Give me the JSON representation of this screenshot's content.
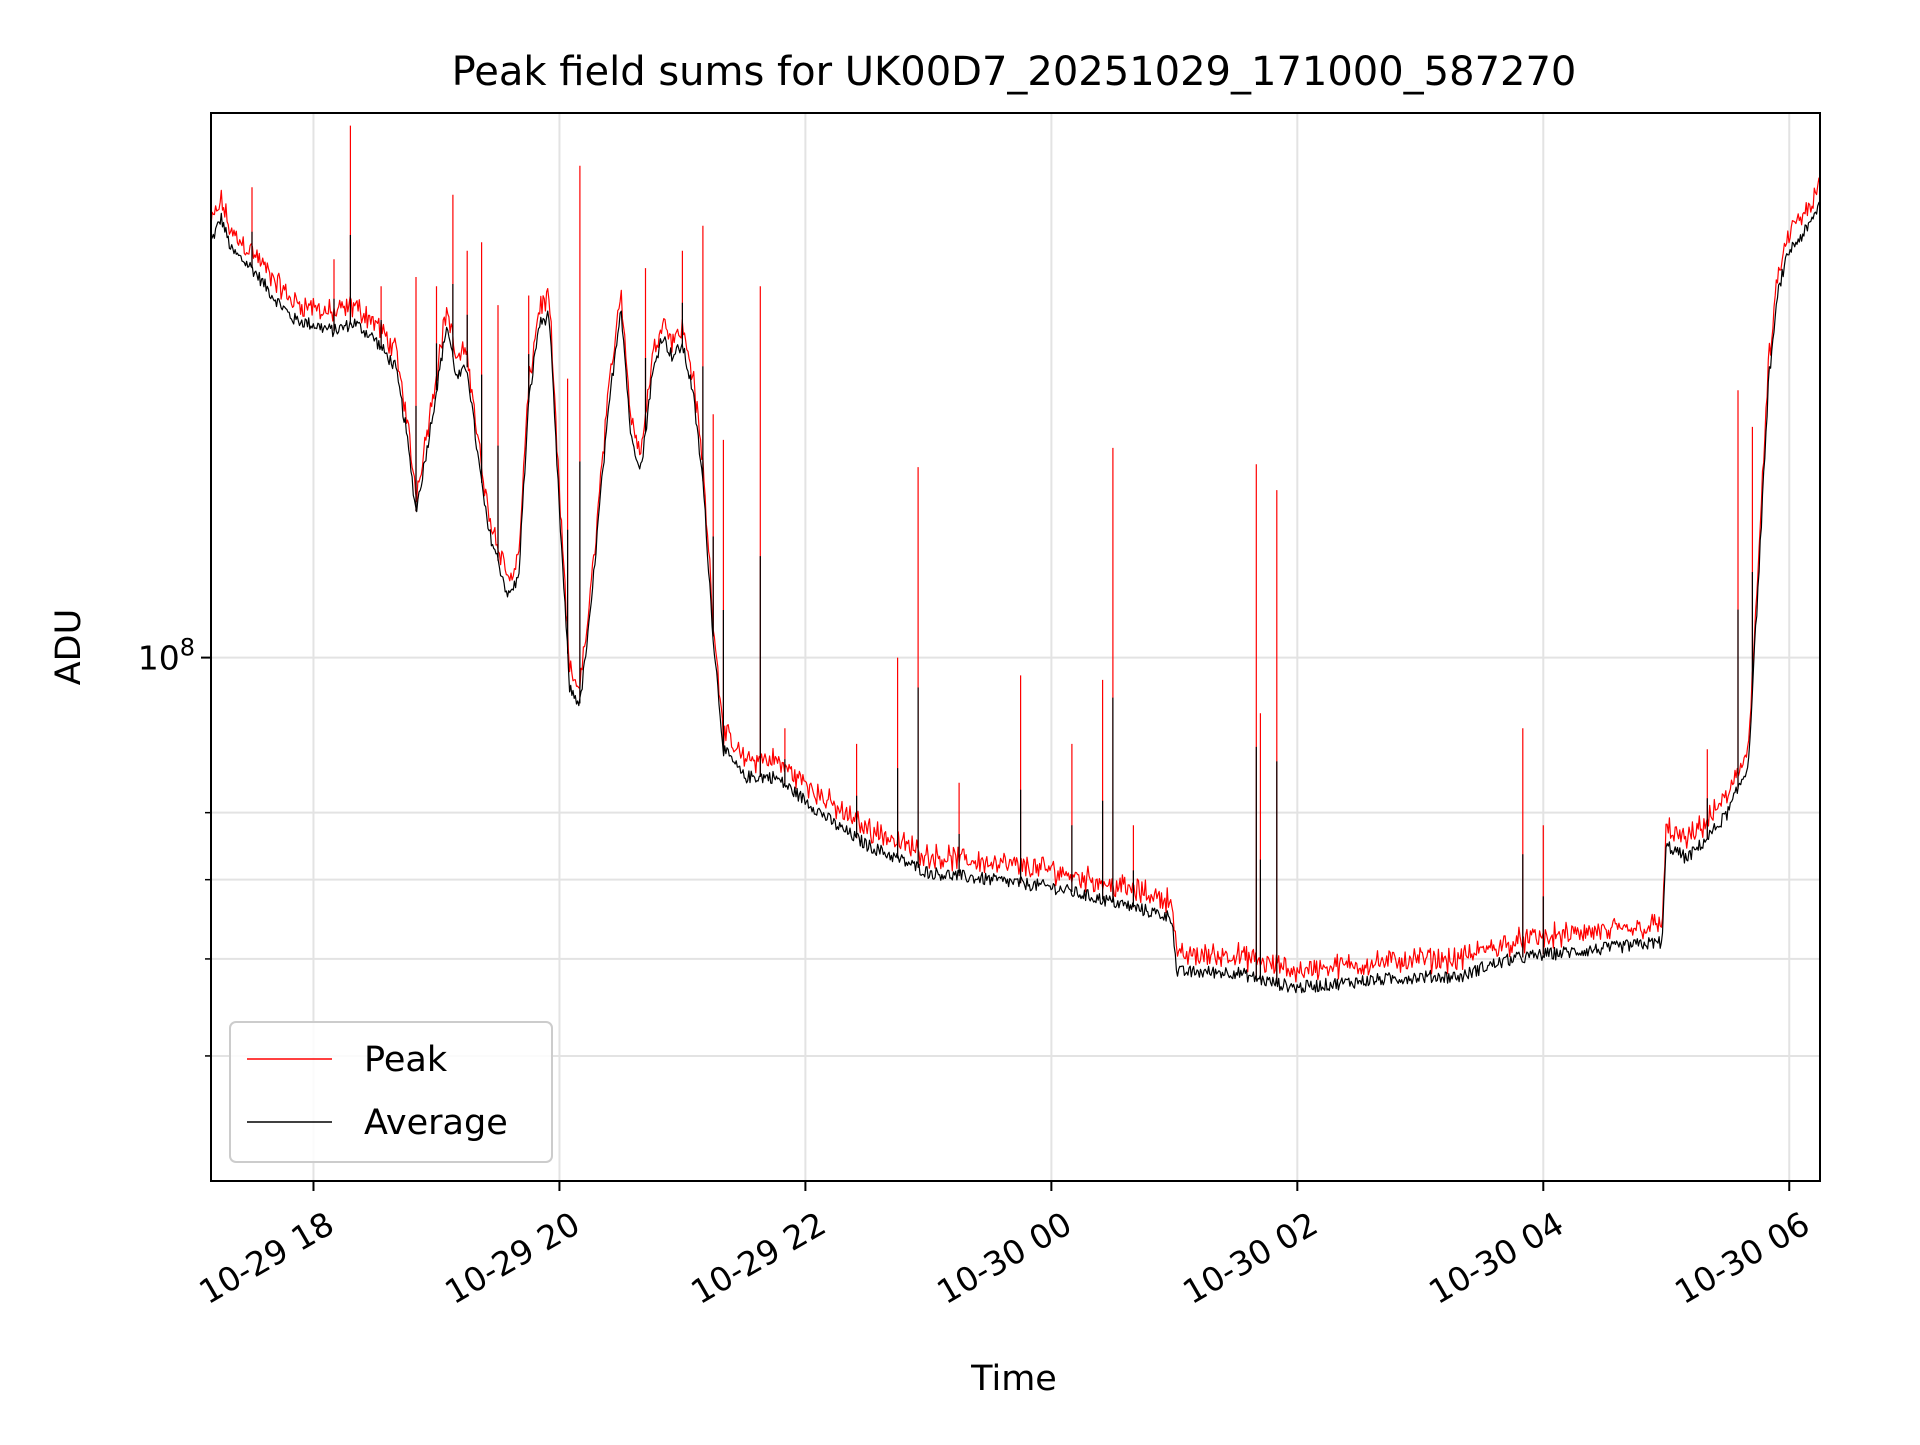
{
  "chart_data": {
    "type": "line",
    "title": "Peak field sums for UK00D7_20251029_171000_587270",
    "xlabel": "Time",
    "ylabel": "ADU",
    "y_scale": "log",
    "ylim": [
      30000000,
      350000000
    ],
    "xlim": [
      "2025-10-29T17:10",
      "2025-10-30T06:15"
    ],
    "grid": true,
    "legend_position": "lower-left",
    "x_ticks": [
      {
        "label": "10-29 18",
        "value": "2025-10-29T18:00"
      },
      {
        "label": "10-29 20",
        "value": "2025-10-29T20:00"
      },
      {
        "label": "10-29 22",
        "value": "2025-10-29T22:00"
      },
      {
        "label": "10-30 00",
        "value": "2025-10-30T00:00"
      },
      {
        "label": "10-30 02",
        "value": "2025-10-30T02:00"
      },
      {
        "label": "10-30 04",
        "value": "2025-10-30T04:00"
      },
      {
        "label": "10-30 06",
        "value": "2025-10-30T06:00"
      }
    ],
    "y_ticks": [
      {
        "base": "10",
        "exp": "8",
        "value": 100000000
      }
    ],
    "y_minor_ticks": [
      40000000,
      50000000,
      60000000,
      70000000
    ],
    "series": [
      {
        "name": "Peak",
        "color": "#ff0000",
        "stroke_width": 1
      },
      {
        "name": "Average",
        "color": "#000000",
        "stroke_width": 1
      }
    ],
    "average_series": [
      [
        "2025-10-29T17:10",
        260000000.0
      ],
      [
        "2025-10-29T17:15",
        275000000.0
      ],
      [
        "2025-10-29T17:20",
        255000000.0
      ],
      [
        "2025-10-29T17:30",
        245000000.0
      ],
      [
        "2025-10-29T17:40",
        230000000.0
      ],
      [
        "2025-10-29T17:50",
        218000000.0
      ],
      [
        "2025-10-29T18:00",
        215000000.0
      ],
      [
        "2025-10-29T18:10",
        212000000.0
      ],
      [
        "2025-10-29T18:20",
        216000000.0
      ],
      [
        "2025-10-29T18:30",
        208000000.0
      ],
      [
        "2025-10-29T18:40",
        195000000.0
      ],
      [
        "2025-10-29T18:45",
        170000000.0
      ],
      [
        "2025-10-29T18:50",
        140000000.0
      ],
      [
        "2025-10-29T18:55",
        160000000.0
      ],
      [
        "2025-10-29T19:00",
        185000000.0
      ],
      [
        "2025-10-29T19:05",
        215000000.0
      ],
      [
        "2025-10-29T19:10",
        190000000.0
      ],
      [
        "2025-10-29T19:15",
        195000000.0
      ],
      [
        "2025-10-29T19:20",
        160000000.0
      ],
      [
        "2025-10-29T19:25",
        135000000.0
      ],
      [
        "2025-10-29T19:30",
        125000000.0
      ],
      [
        "2025-10-29T19:35",
        115000000.0
      ],
      [
        "2025-10-29T19:40",
        120000000.0
      ],
      [
        "2025-10-29T19:45",
        180000000.0
      ],
      [
        "2025-10-29T19:50",
        215000000.0
      ],
      [
        "2025-10-29T19:55",
        220000000.0
      ],
      [
        "2025-10-29T20:00",
        140000000.0
      ],
      [
        "2025-10-29T20:05",
        93000000.0
      ],
      [
        "2025-10-29T20:10",
        90000000.0
      ],
      [
        "2025-10-29T20:15",
        110000000.0
      ],
      [
        "2025-10-29T20:20",
        145000000.0
      ],
      [
        "2025-10-29T20:25",
        185000000.0
      ],
      [
        "2025-10-29T20:30",
        225000000.0
      ],
      [
        "2025-10-29T20:35",
        165000000.0
      ],
      [
        "2025-10-29T20:40",
        155000000.0
      ],
      [
        "2025-10-29T20:45",
        190000000.0
      ],
      [
        "2025-10-29T20:50",
        210000000.0
      ],
      [
        "2025-10-29T20:55",
        200000000.0
      ],
      [
        "2025-10-29T21:00",
        205000000.0
      ],
      [
        "2025-10-29T21:05",
        185000000.0
      ],
      [
        "2025-10-29T21:10",
        150000000.0
      ],
      [
        "2025-10-29T21:15",
        105000000.0
      ],
      [
        "2025-10-29T21:20",
        81000000.0
      ],
      [
        "2025-10-29T21:30",
        76000000.0
      ],
      [
        "2025-10-29T21:45",
        76000000.0
      ],
      [
        "2025-10-29T22:00",
        72000000.0
      ],
      [
        "2025-10-29T22:15",
        68000000.0
      ],
      [
        "2025-10-29T22:30",
        65000000.0
      ],
      [
        "2025-10-29T22:45",
        63000000.0
      ],
      [
        "2025-10-29T23:00",
        61000000.0
      ],
      [
        "2025-10-29T23:30",
        60000000.0
      ],
      [
        "2025-10-30T00:00",
        59000000.0
      ],
      [
        "2025-10-30T00:30",
        57000000.0
      ],
      [
        "2025-10-30T00:59",
        55000000.0
      ],
      [
        "2025-10-30T01:01",
        48500000.0
      ],
      [
        "2025-10-30T01:30",
        48500000.0
      ],
      [
        "2025-10-30T01:45",
        47500000.0
      ],
      [
        "2025-10-30T02:00",
        46800000.0
      ],
      [
        "2025-10-30T02:30",
        47500000.0
      ],
      [
        "2025-10-30T03:00",
        48000000.0
      ],
      [
        "2025-10-30T03:20",
        48000000.0
      ],
      [
        "2025-10-30T03:30",
        49000000.0
      ],
      [
        "2025-10-30T03:45",
        50000000.0
      ],
      [
        "2025-10-30T04:00",
        50500000.0
      ],
      [
        "2025-10-30T04:30",
        51200000.0
      ],
      [
        "2025-10-30T04:58",
        52000000.0
      ],
      [
        "2025-10-30T05:00",
        65000000.0
      ],
      [
        "2025-10-30T05:10",
        63000000.0
      ],
      [
        "2025-10-30T05:20",
        66000000.0
      ],
      [
        "2025-10-30T05:30",
        70000000.0
      ],
      [
        "2025-10-30T05:40",
        78000000.0
      ],
      [
        "2025-10-30T05:45",
        120000000.0
      ],
      [
        "2025-10-30T05:50",
        190000000.0
      ],
      [
        "2025-10-30T05:55",
        235000000.0
      ],
      [
        "2025-10-30T06:00",
        255000000.0
      ],
      [
        "2025-10-30T06:10",
        270000000.0
      ],
      [
        "2025-10-30T06:15",
        285000000.0
      ]
    ],
    "peak_offset_ratio": 1.02,
    "peak_spikes": [
      [
        "2025-10-29T17:30",
        295000000.0
      ],
      [
        "2025-10-29T18:10",
        250000000.0
      ],
      [
        "2025-10-29T18:18",
        340000000.0
      ],
      [
        "2025-10-29T18:33",
        235000000.0
      ],
      [
        "2025-10-29T18:50",
        240000000.0
      ],
      [
        "2025-10-29T19:00",
        235000000.0
      ],
      [
        "2025-10-29T19:08",
        290000000.0
      ],
      [
        "2025-10-29T19:15",
        255000000.0
      ],
      [
        "2025-10-29T19:22",
        260000000.0
      ],
      [
        "2025-10-29T19:30",
        225000000.0
      ],
      [
        "2025-10-29T19:45",
        230000000.0
      ],
      [
        "2025-10-29T20:04",
        190000000.0
      ],
      [
        "2025-10-29T20:10",
        310000000.0
      ],
      [
        "2025-10-29T20:42",
        245000000.0
      ],
      [
        "2025-10-29T21:00",
        255000000.0
      ],
      [
        "2025-10-29T21:10",
        270000000.0
      ],
      [
        "2025-10-29T21:15",
        175000000.0
      ],
      [
        "2025-10-29T21:20",
        165000000.0
      ],
      [
        "2025-10-29T21:38",
        235000000.0
      ],
      [
        "2025-10-29T21:50",
        85000000.0
      ],
      [
        "2025-10-29T22:25",
        82000000.0
      ],
      [
        "2025-10-29T22:45",
        100000000.0
      ],
      [
        "2025-10-29T22:55",
        155000000.0
      ],
      [
        "2025-10-29T23:15",
        75000000.0
      ],
      [
        "2025-10-29T23:45",
        96000000.0
      ],
      [
        "2025-10-30T00:10",
        82000000.0
      ],
      [
        "2025-10-30T00:25",
        95000000.0
      ],
      [
        "2025-10-30T00:30",
        162000000.0
      ],
      [
        "2025-10-30T00:40",
        68000000.0
      ],
      [
        "2025-10-30T01:40",
        156000000.0
      ],
      [
        "2025-10-30T01:42",
        88000000.0
      ],
      [
        "2025-10-30T01:50",
        147000000.0
      ],
      [
        "2025-10-30T03:50",
        85000000.0
      ],
      [
        "2025-10-30T04:00",
        68000000.0
      ],
      [
        "2025-10-30T05:20",
        81000000.0
      ],
      [
        "2025-10-30T05:35",
        185000000.0
      ],
      [
        "2025-10-30T05:42",
        170000000.0
      ]
    ]
  }
}
